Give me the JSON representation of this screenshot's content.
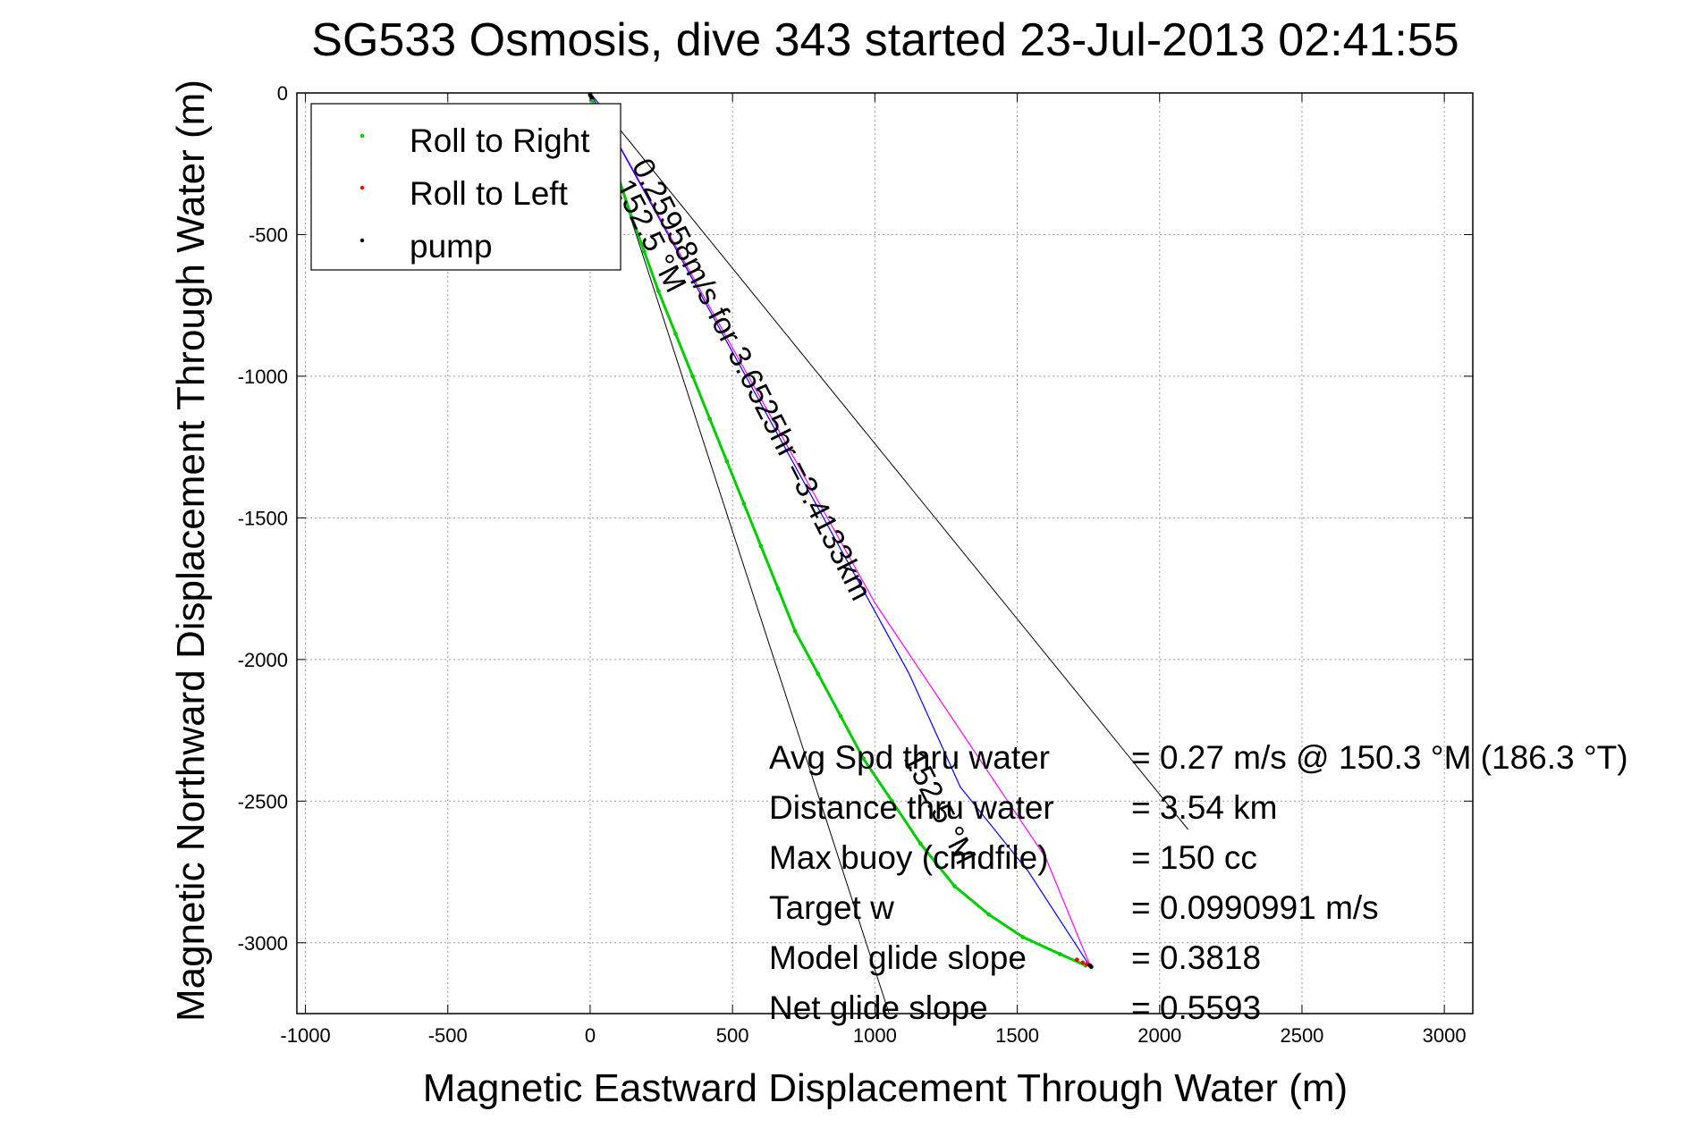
{
  "chart_data": {
    "type": "line",
    "title": "SG533 Osmosis, dive 343 started 23-Jul-2013 02:41:55",
    "xlabel": "Magnetic Eastward Displacement Through Water (m)",
    "ylabel": "Magnetic Northward Displacement Through Water (m)",
    "xlim": [
      -1030,
      3100
    ],
    "ylim": [
      -3250,
      0
    ],
    "xticks": [
      -1000,
      -500,
      0,
      500,
      1000,
      1500,
      2000,
      2500,
      3000
    ],
    "yticks": [
      0,
      -500,
      -1000,
      -1500,
      -2000,
      -2500,
      -3000
    ],
    "xtick_labels": [
      "-1000",
      "-500",
      "0",
      "500",
      "1000",
      "1500",
      "2000",
      "2500",
      "3000"
    ],
    "ytick_labels": [
      "0",
      "-500",
      "-1000",
      "-1500",
      "-2000",
      "-2500",
      "-3000"
    ],
    "grid": true,
    "legend_position": "top-left",
    "legend": [
      {
        "label": "Roll to Right",
        "color": "#00cc00"
      },
      {
        "label": "Roll to Left",
        "color": "#ff0000"
      },
      {
        "label": "pump",
        "color": "#000000"
      }
    ],
    "series": [
      {
        "name": "Roll to Right",
        "color": "#00cc00",
        "points": [
          [
            0,
            -10
          ],
          [
            20,
            -60
          ],
          [
            40,
            -120
          ],
          [
            70,
            -200
          ],
          [
            100,
            -300
          ],
          [
            140,
            -420
          ],
          [
            190,
            -560
          ],
          [
            240,
            -700
          ],
          [
            300,
            -850
          ],
          [
            360,
            -1000
          ],
          [
            420,
            -1150
          ],
          [
            480,
            -1300
          ],
          [
            540,
            -1450
          ],
          [
            600,
            -1600
          ],
          [
            660,
            -1750
          ],
          [
            720,
            -1900
          ],
          [
            800,
            -2050
          ],
          [
            880,
            -2200
          ],
          [
            960,
            -2350
          ],
          [
            1060,
            -2500
          ],
          [
            1160,
            -2650
          ],
          [
            1280,
            -2800
          ],
          [
            1400,
            -2900
          ],
          [
            1520,
            -2980
          ],
          [
            1650,
            -3040
          ],
          [
            1740,
            -3080
          ]
        ]
      },
      {
        "name": "Roll to Left",
        "color": "#ff0000",
        "points": [
          [
            1710,
            -3060
          ],
          [
            1730,
            -3070
          ],
          [
            1745,
            -3075
          ],
          [
            1755,
            -3080
          ]
        ]
      },
      {
        "name": "pump",
        "color": "#000000",
        "points": [
          [
            0,
            -5
          ],
          [
            5,
            -15
          ],
          [
            1755,
            -3080
          ],
          [
            1760,
            -3085
          ]
        ]
      }
    ],
    "track_lines": [
      {
        "color": "#ff00ff",
        "points": [
          [
            0,
            0
          ],
          [
            1000,
            -1800
          ],
          [
            1600,
            -2700
          ],
          [
            1760,
            -3090
          ]
        ]
      },
      {
        "color": "#0000ff",
        "points": [
          [
            0,
            0
          ],
          [
            1120,
            -2050
          ],
          [
            1300,
            -2450
          ],
          [
            1540,
            -2750
          ],
          [
            1760,
            -3090
          ]
        ]
      }
    ],
    "heading_lines": [
      {
        "color": "#000000",
        "points": [
          [
            0,
            0
          ],
          [
            1050,
            -3250
          ]
        ]
      },
      {
        "color": "#000000",
        "points": [
          [
            0,
            0
          ],
          [
            2100,
            -2600
          ]
        ]
      }
    ],
    "annotations": {
      "current": "0.25958m/s for 3.6525hr =3.4133km",
      "heading_top": "152.5 °M",
      "heading_mid": "152.5 °M"
    },
    "stats": [
      {
        "label": "Avg Spd thru water",
        "value": "=  0.27 m/s @ 150.3 °M (186.3 °T)"
      },
      {
        "label": "Distance thru water",
        "value": "=  3.54 km"
      },
      {
        "label": "Max buoy (cmdfile)",
        "value": "= 150 cc"
      },
      {
        "label": "Target w",
        "value": "= 0.0990991 m/s"
      },
      {
        "label": "Model glide slope",
        "value": "= 0.3818"
      },
      {
        "label": "Net glide slope",
        "value": "= 0.5593"
      }
    ]
  }
}
